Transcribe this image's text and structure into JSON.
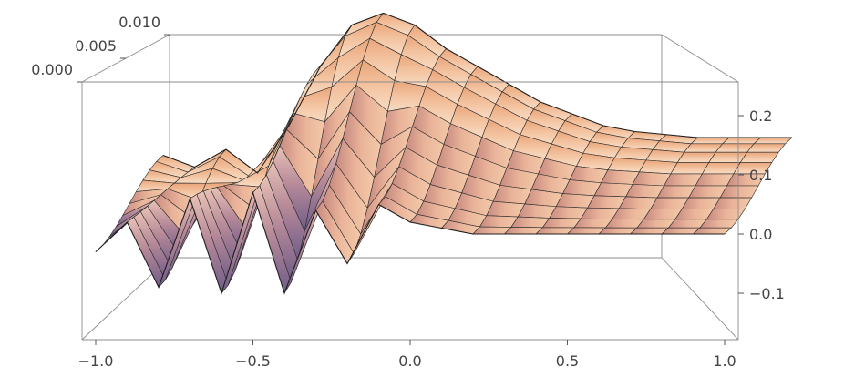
{
  "chart_data": {
    "type": "surface3d",
    "title": "",
    "xlabel": "",
    "ylabel": "",
    "zlabel": "",
    "x_ticks": [
      "−1.0",
      "−0.5",
      "0.0",
      "0.5",
      "1.0"
    ],
    "y_ticks": [
      "0.000",
      "0.005",
      "0.010"
    ],
    "z_ticks": [
      "−0.1",
      "0.0",
      "0.1",
      "0.2"
    ],
    "x_tick_values": [
      -1.0,
      -0.5,
      0.0,
      0.5,
      1.0
    ],
    "y_tick_values": [
      0.0,
      0.005,
      0.01
    ],
    "z_tick_values": [
      -0.1,
      0.0,
      0.1,
      0.2
    ],
    "xlim": [
      -1.0,
      1.0
    ],
    "ylim": [
      0.0,
      0.01
    ],
    "zlim": [
      -0.18,
      0.25
    ],
    "box": true,
    "mesh": true,
    "surface_profile": {
      "x": [
        -1.0,
        -0.9,
        -0.8,
        -0.7,
        -0.6,
        -0.5,
        -0.4,
        -0.3,
        -0.2,
        -0.1,
        0.0,
        0.1,
        0.2,
        0.3,
        0.4,
        0.5,
        0.6,
        0.7,
        0.8,
        0.9,
        1.0
      ],
      "z_front": [
        -0.03,
        0.02,
        -0.09,
        0.06,
        -0.1,
        0.07,
        -0.1,
        0.04,
        -0.05,
        0.05,
        0.02,
        0.01,
        0.0,
        0.0,
        0.0,
        0.0,
        0.0,
        0.0,
        0.0,
        0.0,
        0.0
      ],
      "z_back": [
        0.05,
        0.03,
        0.06,
        0.02,
        0.1,
        0.2,
        0.27,
        0.29,
        0.27,
        0.23,
        0.2,
        0.17,
        0.14,
        0.12,
        0.1,
        0.09,
        0.085,
        0.08,
        0.08,
        0.08,
        0.08
      ]
    },
    "colors": {
      "surface_light": "#f6d2b3",
      "surface_mid": "#e29a6e",
      "surface_dark": "#9a5a47",
      "surface_shadow": "#7f6b8f",
      "mesh": "#2b2b2b",
      "box": "#8c8c8c"
    }
  }
}
